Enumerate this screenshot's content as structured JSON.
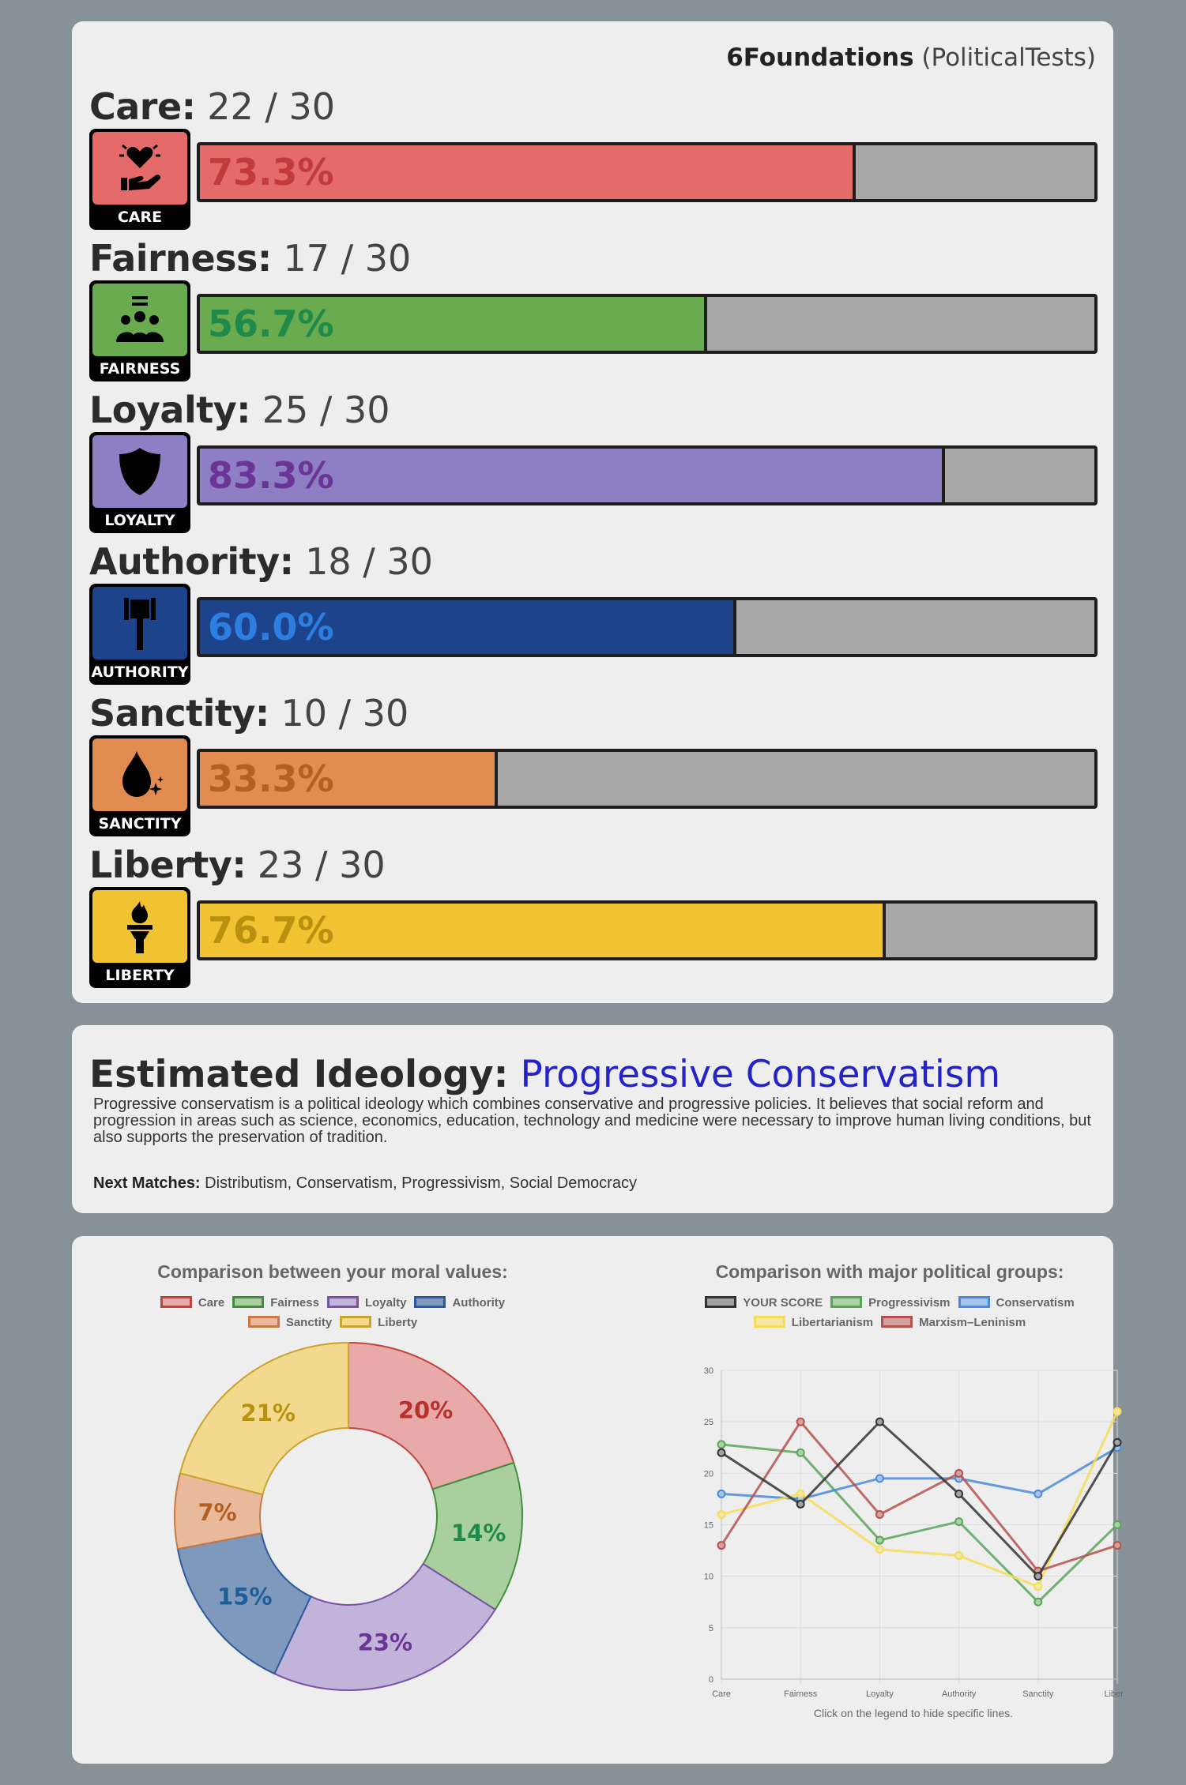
{
  "header": {
    "brand": "6Foundations",
    "source": "(PoliticalTests)"
  },
  "foundations": [
    {
      "name": "Care:",
      "score": "22 / 30",
      "badge": "CARE",
      "percent_text": "73.3%",
      "percent": 73.3,
      "icon": "heart-hand-icon",
      "color": "#e56b6b",
      "text_color": "#c23b3b"
    },
    {
      "name": "Fairness:",
      "score": "17 / 30",
      "badge": "FAIRNESS",
      "percent_text": "56.7%",
      "percent": 56.7,
      "icon": "people-icon",
      "color": "#69ab4e",
      "text_color": "#1f8a4a"
    },
    {
      "name": "Loyalty:",
      "score": "25 / 30",
      "badge": "LOYALTY",
      "percent_text": "83.3%",
      "percent": 83.3,
      "icon": "shield-icon",
      "color": "#8e7ec4",
      "text_color": "#6b3596"
    },
    {
      "name": "Authority:",
      "score": "18 / 30",
      "badge": "AUTHORITY",
      "percent_text": "60.0%",
      "percent": 60.0,
      "icon": "gavel-icon",
      "color": "#1d448b",
      "text_color": "#2e7de0"
    },
    {
      "name": "Sanctity:",
      "score": "10 / 30",
      "badge": "SANCTITY",
      "percent_text": "33.3%",
      "percent": 33.3,
      "icon": "drop-icon",
      "color": "#e38c52",
      "text_color": "#b45f23"
    },
    {
      "name": "Liberty:",
      "score": "23 / 30",
      "badge": "LIBERTY",
      "percent_text": "76.7%",
      "percent": 76.7,
      "icon": "torch-icon",
      "color": "#f1c232",
      "text_color": "#b8920e"
    }
  ],
  "ideology": {
    "label": "Estimated Ideology:",
    "name": "Progressive Conservatism",
    "description": "Progressive conservatism is a political ideology which combines conservative and progressive policies. It believes that social reform and progression in areas such as science, economics, education, technology and medicine were necessary to improve human living conditions, but also supports the preservation of tradition.",
    "next_label": "Next Matches:",
    "next_values": "Distributism, Conservatism, Progressivism, Social Democracy"
  },
  "chart_data": [
    {
      "type": "pie",
      "variant": "doughnut",
      "title": "Comparison between your moral values:",
      "categories": [
        "Care",
        "Fairness",
        "Loyalty",
        "Authority",
        "Sanctity",
        "Liberty"
      ],
      "values": [
        20,
        14,
        23,
        15,
        7,
        21
      ],
      "value_labels": [
        "20%",
        "14%",
        "23%",
        "15%",
        "7%",
        "21%"
      ],
      "fill_colors": [
        "#e8a9a9",
        "#aacf9f",
        "#c1b3da",
        "#7f99bd",
        "#e8b99a",
        "#f2d98e"
      ],
      "border_colors": [
        "#c0443d",
        "#3f8f3f",
        "#7a52a8",
        "#2b5aa0",
        "#c87945",
        "#c9a32b"
      ],
      "label_colors": [
        "#b8302d",
        "#1f8a4a",
        "#6b3596",
        "#1f5e96",
        "#b45f23",
        "#b8920e"
      ],
      "legend_position": "top"
    },
    {
      "type": "line",
      "title": "Comparison with major political groups:",
      "categories": [
        "Care",
        "Fairness",
        "Loyalty",
        "Authority",
        "Sanctity",
        "Liberty"
      ],
      "ylim": [
        0,
        30
      ],
      "yticks": [
        "0",
        "5",
        "10",
        "15",
        "20",
        "25",
        "30"
      ],
      "grid": true,
      "legend_position": "top",
      "series": [
        {
          "name": "YOUR SCORE",
          "values": [
            22,
            17,
            25,
            18,
            10,
            23
          ],
          "color": "#333333",
          "fill": "#9fa3a6"
        },
        {
          "name": "Progressivism",
          "values": [
            22.8,
            22,
            13.5,
            15.3,
            7.5,
            15
          ],
          "color": "#5aa55a",
          "fill": "#aad3a5"
        },
        {
          "name": "Conservatism",
          "values": [
            18,
            17.5,
            19.5,
            19.5,
            18,
            22.5
          ],
          "color": "#4a8ad9",
          "fill": "#a5c3ea"
        },
        {
          "name": "Libertarianism",
          "values": [
            16,
            18,
            12.6,
            12,
            9,
            26
          ],
          "color": "#f7dc55",
          "fill": "#f6e7a6"
        },
        {
          "name": "Marxism–Leninism",
          "values": [
            13,
            25,
            16,
            20,
            10.5,
            13
          ],
          "color": "#b5524d",
          "fill": "#d5a19e"
        }
      ],
      "note": "Click on the legend to hide specific lines."
    }
  ]
}
